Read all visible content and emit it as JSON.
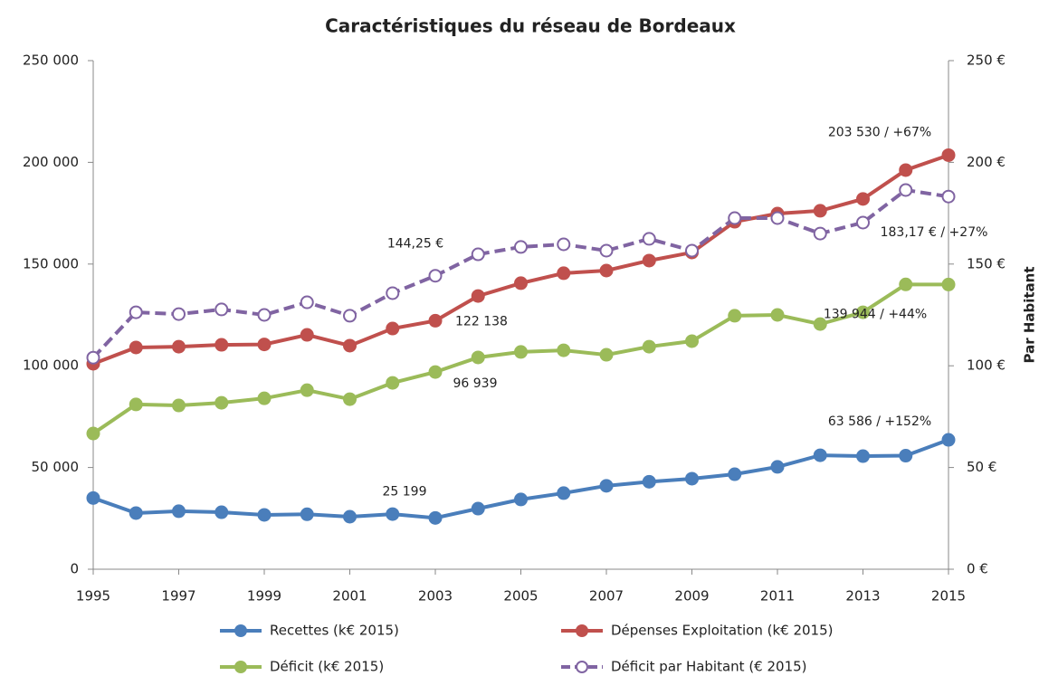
{
  "chart_data": {
    "type": "line",
    "title": "Caractéristiques du réseau de Bordeaux",
    "y2label": "Par Habitant",
    "x": [
      1995,
      1996,
      1997,
      1998,
      1999,
      2000,
      2001,
      2002,
      2003,
      2004,
      2005,
      2006,
      2007,
      2008,
      2009,
      2010,
      2011,
      2012,
      2013,
      2014,
      2015
    ],
    "xlim": [
      1995,
      2015
    ],
    "xticks": [
      1995,
      1997,
      1999,
      2001,
      2003,
      2005,
      2007,
      2009,
      2011,
      2013,
      2015
    ],
    "ylim": [
      0,
      250000
    ],
    "yticks": [
      0,
      {
        "value": 50000,
        "label": "50 000"
      },
      {
        "value": 100000,
        "label": "100 000"
      },
      {
        "value": 150000,
        "label": "150 000"
      },
      {
        "value": 200000,
        "label": "200 000"
      },
      {
        "value": 250000,
        "label": "250 000"
      }
    ],
    "y2lim": [
      0,
      250
    ],
    "y2ticks": [
      {
        "value": 0,
        "label": "0 €"
      },
      {
        "value": 50,
        "label": "50 €"
      },
      {
        "value": 100,
        "label": "100 €"
      },
      {
        "value": 150,
        "label": "150 €"
      },
      {
        "value": 200,
        "label": "200 €"
      },
      {
        "value": 250,
        "label": "250 €"
      }
    ],
    "grid": false,
    "series": [
      {
        "name": "Recettes (k€ 2015)",
        "color": "#4a7ebb",
        "values": [
          35000,
          27600,
          28500,
          28000,
          26700,
          27000,
          25800,
          27100,
          25199,
          29800,
          34300,
          37400,
          41000,
          43000,
          44500,
          46700,
          50300,
          56000,
          55600,
          55800,
          63586
        ],
        "value_labels": [
          null,
          null,
          null,
          null,
          null,
          null,
          null,
          null,
          "25 199",
          null,
          null,
          null,
          null,
          null,
          null,
          null,
          null,
          null,
          null,
          null,
          "63 586 / +152%"
        ]
      },
      {
        "name": "Dépenses Exploitation (k€ 2015)",
        "color": "#c0504d",
        "values": [
          101000,
          109000,
          109400,
          110300,
          110500,
          115200,
          109900,
          118300,
          122138,
          134300,
          140600,
          145500,
          146800,
          151700,
          155700,
          170800,
          174800,
          176200,
          182000,
          196200,
          203530
        ],
        "value_labels": [
          null,
          null,
          null,
          null,
          null,
          null,
          null,
          null,
          "122 138",
          null,
          null,
          null,
          null,
          null,
          null,
          null,
          null,
          null,
          null,
          null,
          "203 530 / +67%"
        ]
      },
      {
        "name": "Déficit (k€ 2015)",
        "color": "#9bbb59",
        "values": [
          66700,
          81000,
          80500,
          81800,
          84000,
          88000,
          83600,
          91600,
          96939,
          104100,
          106800,
          107600,
          105400,
          109400,
          112100,
          124600,
          125000,
          120500,
          126300,
          140000,
          139944
        ],
        "value_labels": [
          null,
          null,
          null,
          null,
          null,
          null,
          null,
          null,
          "96 939",
          null,
          null,
          null,
          null,
          null,
          null,
          null,
          null,
          null,
          null,
          null,
          "139 944 / +44%"
        ]
      },
      {
        "name": "Déficit par Habitant (€ 2015)",
        "color": "#8064a2",
        "axis": "y2",
        "dashed": true,
        "marker": "open",
        "values": [
          104,
          126.3,
          125.4,
          127.7,
          125,
          131.2,
          124.6,
          135.7,
          144.25,
          154.8,
          158.4,
          159.7,
          156.6,
          162.4,
          156.6,
          172.6,
          172.6,
          165,
          170.4,
          186.4,
          183.17
        ],
        "value_labels": [
          null,
          null,
          null,
          null,
          null,
          null,
          null,
          null,
          "144,25 €",
          null,
          null,
          null,
          null,
          null,
          null,
          null,
          null,
          null,
          null,
          null,
          "183,17 € / +27%"
        ]
      }
    ]
  }
}
